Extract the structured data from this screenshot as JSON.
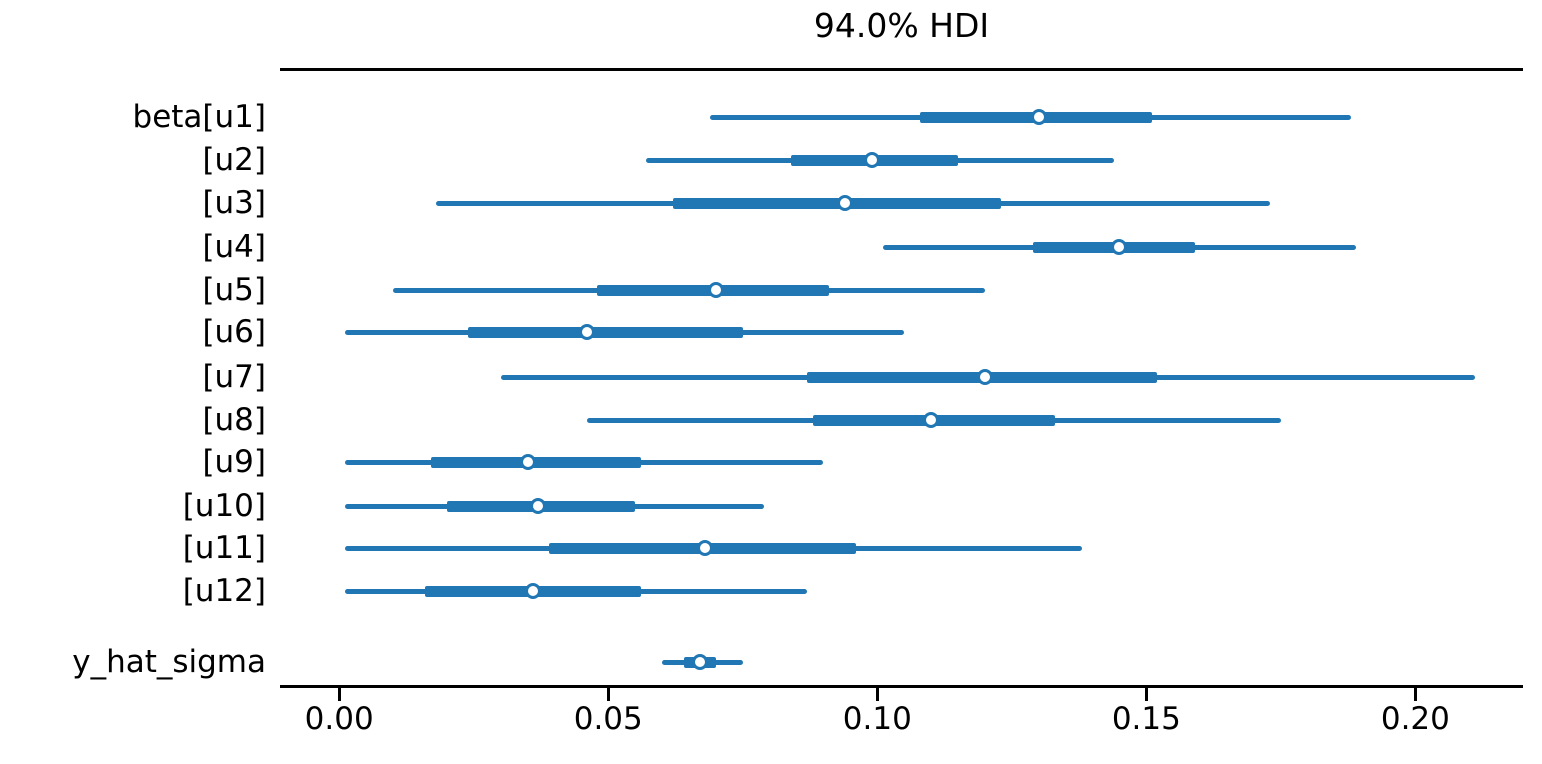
{
  "chart_data": {
    "type": "forest",
    "title": "94.0% HDI",
    "hdi_probability": "94.0%",
    "xlabel": "",
    "ylabel": "",
    "xlim": [
      -0.011,
      0.22
    ],
    "x_ticks": [
      0.0,
      0.05,
      0.1,
      0.15,
      0.2
    ],
    "x_tick_labels": [
      "0.00",
      "0.05",
      "0.10",
      "0.15",
      "0.20"
    ],
    "grid": false,
    "legend": false,
    "accent_color": "#2077b4",
    "spine_color": "#000000",
    "marker_fill": "#ffffff",
    "rows": [
      {
        "label": "beta[u1]",
        "hdi_low": 0.069,
        "hdi_high": 0.188,
        "iq_low": 0.108,
        "iq_high": 0.151,
        "median": 0.13
      },
      {
        "label": "[u2]",
        "hdi_low": 0.057,
        "hdi_high": 0.144,
        "iq_low": 0.084,
        "iq_high": 0.115,
        "median": 0.099
      },
      {
        "label": "[u3]",
        "hdi_low": 0.018,
        "hdi_high": 0.173,
        "iq_low": 0.062,
        "iq_high": 0.123,
        "median": 0.094
      },
      {
        "label": "[u4]",
        "hdi_low": 0.101,
        "hdi_high": 0.189,
        "iq_low": 0.129,
        "iq_high": 0.159,
        "median": 0.145
      },
      {
        "label": "[u5]",
        "hdi_low": 0.01,
        "hdi_high": 0.12,
        "iq_low": 0.048,
        "iq_high": 0.091,
        "median": 0.07
      },
      {
        "label": "[u6]",
        "hdi_low": 0.001,
        "hdi_high": 0.105,
        "iq_low": 0.024,
        "iq_high": 0.075,
        "median": 0.046
      },
      {
        "label": "[u7]",
        "hdi_low": 0.03,
        "hdi_high": 0.211,
        "iq_low": 0.087,
        "iq_high": 0.152,
        "median": 0.12
      },
      {
        "label": "[u8]",
        "hdi_low": 0.046,
        "hdi_high": 0.175,
        "iq_low": 0.088,
        "iq_high": 0.133,
        "median": 0.11
      },
      {
        "label": "[u9]",
        "hdi_low": 0.001,
        "hdi_high": 0.09,
        "iq_low": 0.017,
        "iq_high": 0.056,
        "median": 0.035
      },
      {
        "label": "[u10]",
        "hdi_low": 0.001,
        "hdi_high": 0.079,
        "iq_low": 0.02,
        "iq_high": 0.055,
        "median": 0.037
      },
      {
        "label": "[u11]",
        "hdi_low": 0.001,
        "hdi_high": 0.138,
        "iq_low": 0.039,
        "iq_high": 0.096,
        "median": 0.068
      },
      {
        "label": "[u12]",
        "hdi_low": 0.001,
        "hdi_high": 0.087,
        "iq_low": 0.016,
        "iq_high": 0.056,
        "median": 0.036
      },
      {
        "label": "y_hat_sigma",
        "hdi_low": 0.06,
        "hdi_high": 0.075,
        "iq_low": 0.064,
        "iq_high": 0.07,
        "median": 0.067
      }
    ]
  }
}
